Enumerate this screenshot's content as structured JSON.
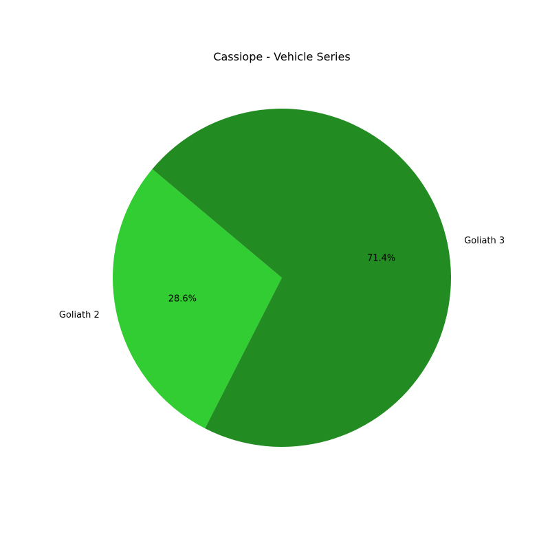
{
  "chart_data": {
    "type": "pie",
    "title": "Cassiope - Vehicle Series",
    "slices": [
      {
        "label": "Goliath 2",
        "value": 28.6,
        "pct_label": "28.6%",
        "color": "#32cd32"
      },
      {
        "label": "Goliath 3",
        "value": 71.4,
        "pct_label": "71.4%",
        "color": "#228b22"
      }
    ],
    "start_angle_deg": 140,
    "legend": "none"
  }
}
